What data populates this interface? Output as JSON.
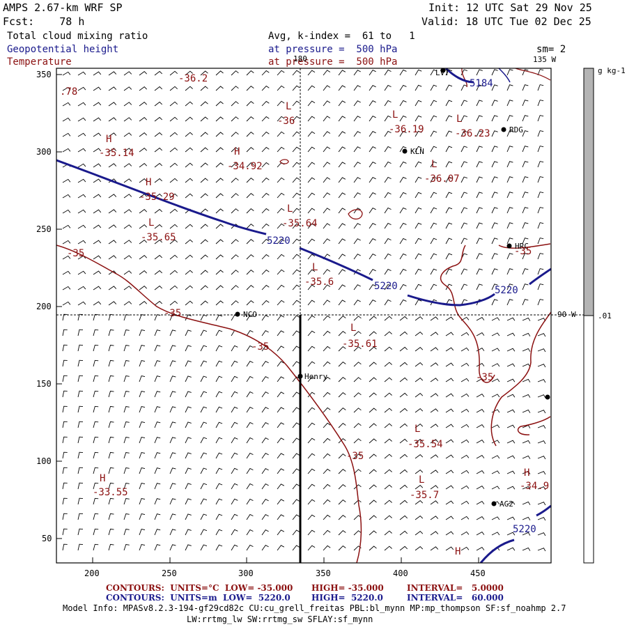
{
  "header": {
    "model": "AMPS 2.67-km WRF SP",
    "fcst": "Fcst:    78 h",
    "init": "Init: 12 UTC Sat 29 Nov 25",
    "valid": "Valid: 18 UTC Tue 02 Dec 25",
    "field1": "Total cloud mixing ratio",
    "field2": "Geopotential height",
    "field3": "Temperature",
    "avg": "Avg, k-index =  61 to   1",
    "press1": "at pressure =  500 hPa",
    "press2": "at pressure =  500 hPa",
    "sm": "sm= 2"
  },
  "axes": {
    "x_ticks": [
      "200",
      "250",
      "300",
      "350",
      "400",
      "450"
    ],
    "y_ticks": [
      "350",
      "300",
      "250",
      "200",
      "150",
      "100",
      "50"
    ],
    "lon_180": "180",
    "lon_135w": "135 W",
    "lon_90w": "90 W"
  },
  "colorbar": {
    "unit": "g kg-1",
    "label": ".01",
    "gray": "#b4b4b4"
  },
  "stations": [
    "LVT",
    "RDG",
    "KLN",
    "HRC",
    "NCO",
    "Henry",
    "AG2"
  ],
  "map_labels": {
    "h1": "H",
    "h1v": "-35.14",
    "h2": "H",
    "h2v": "-34.92",
    "h3": "H",
    "h3v": "-35.29",
    "h4": "H",
    "h4v": "-33.55",
    "h5": "H",
    "h5v": "-34.9",
    "h6": "H",
    "l1": "L",
    "l1v": "-36",
    "l2": "L",
    "l2v": "-36.19",
    "l3": "L",
    "l3v": "-36.23",
    "l4": "L",
    "l4v": "-36.07",
    "l5": "L",
    "l5v": "-35.64",
    "l6": "L",
    "l6v": "-35.65",
    "l7": "L",
    "l7v": "-35.6",
    "l8": "L",
    "l8v": "-35.61",
    "l9": "L",
    "l9v": "-35.54",
    "l10": "L",
    "l10v": "-35.7",
    "t_top": "-36.2",
    "t_78": ".78",
    "c35a": "-35",
    "c35b": "-35",
    "c35c": "-35",
    "c35d": "-35",
    "c35e": "-35",
    "c35f": "-35",
    "g1": "5184",
    "g2": "5220",
    "g3": "5220",
    "g4": "5220",
    "g5": "5220"
  },
  "footer": {
    "line1a": "CONTOURS:  UNITS=°C  LOW= -35.000",
    "line1b": "HIGH= -35.000",
    "line1c": "INTERVAL=   5.0000",
    "line2a": "CONTOURS:  UNITS=m  LOW=  5220.0",
    "line2b": "HIGH=  5220.0",
    "line2c": "INTERVAL=   60.000",
    "info1": "Model Info: MPASv8.2.3-194-gf29cd82c CU:cu_grell_freitas PBL:bl_mynn MP:mp_thompson SF:sf_noahmp 2.7",
    "info2": "LW:rrtmg_lw SW:rrtmg_sw SFLAY:sf_mynn"
  },
  "colors": {
    "temperature": "#8b1010",
    "height": "#1a1a8c"
  }
}
